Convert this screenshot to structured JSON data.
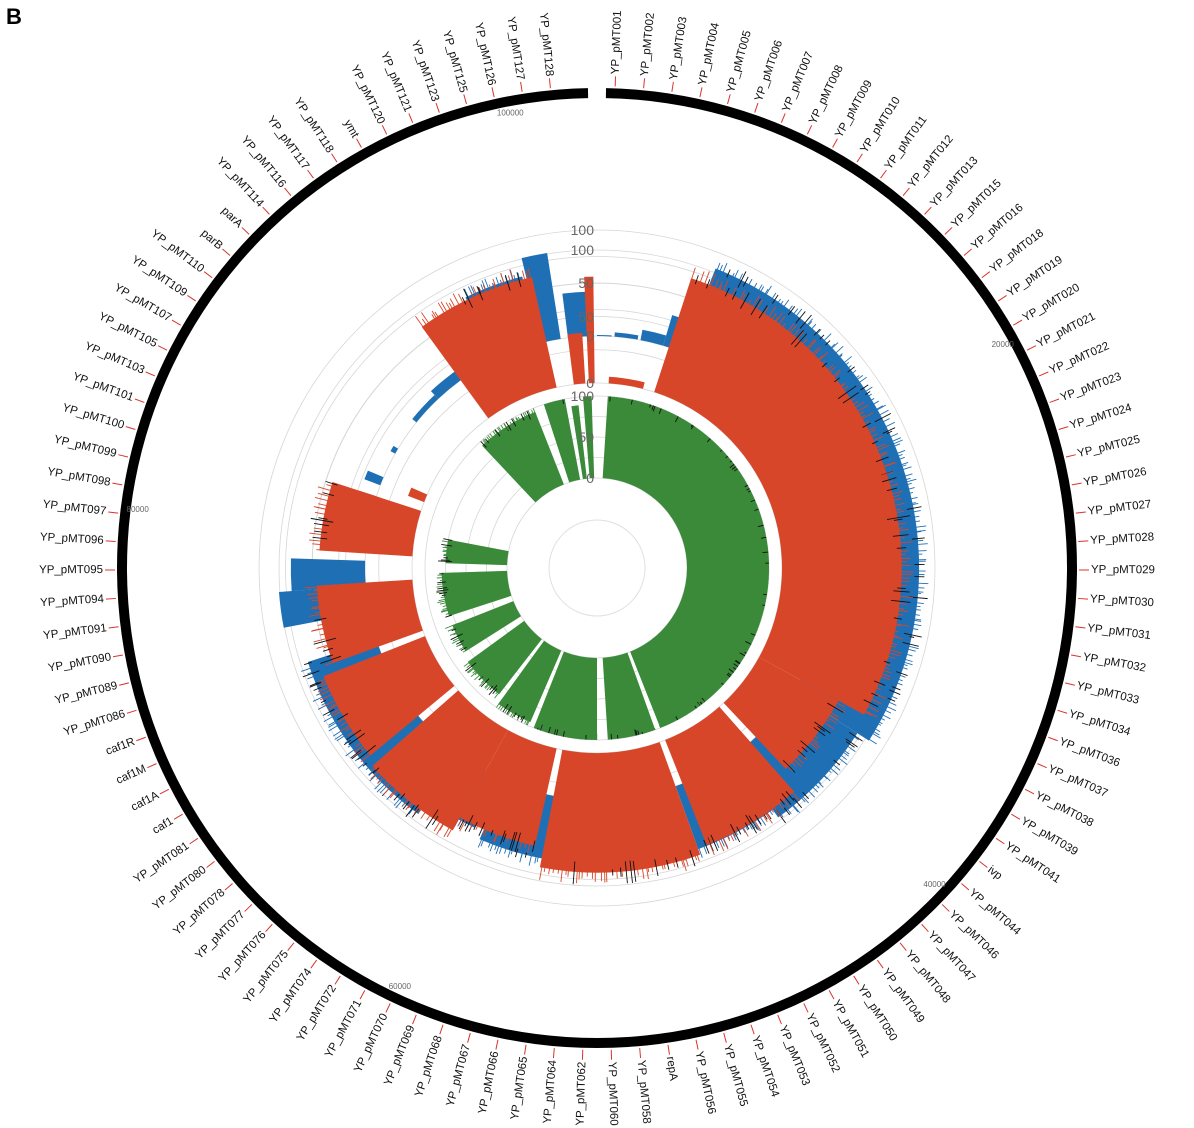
{
  "panel_letter": "B",
  "chart_data": {
    "type": "area",
    "layout": "circular",
    "colors": {
      "track_outer": "#1f6fb5",
      "track_middle": "#d8462a",
      "track_inner": "#3a8a3a",
      "backbone": "#000000",
      "gene_tick": "#d9342b",
      "grid": "#d6d6d6"
    },
    "radial_ticks": [
      "0",
      "50",
      "100"
    ],
    "ylim": [
      0,
      100
    ],
    "coordinate_labels": [
      "100000",
      "80000",
      "60000",
      "40000",
      "20000"
    ],
    "gene_labels": [
      "YP_pMT001",
      "YP_pMT002",
      "YP_pMT003",
      "YP_pMT004",
      "YP_pMT005",
      "YP_pMT006",
      "YP_pMT007",
      "YP_pMT008",
      "YP_pMT009",
      "YP_pMT010",
      "YP_pMT011",
      "YP_pMT012",
      "YP_pMT013",
      "YP_pMT015",
      "YP_pMT016",
      "YP_pMT018",
      "YP_pMT019",
      "YP_pMT020",
      "YP_pMT021",
      "YP_pMT022",
      "YP_pMT023",
      "YP_pMT024",
      "YP_pMT025",
      "YP_pMT026",
      "YP_pMT027",
      "YP_pMT028",
      "YP_pMT029",
      "YP_pMT030",
      "YP_pMT031",
      "YP_pMT032",
      "YP_pMT033",
      "YP_pMT034",
      "YP_pMT036",
      "YP_pMT037",
      "YP_pMT038",
      "YP_pMT039",
      "YP_pMT041",
      "ivp",
      "YP_pMT044",
      "YP_pMT046",
      "YP_pMT047",
      "YP_pMT048",
      "YP_pMT049",
      "YP_pMT050",
      "YP_pMT051",
      "YP_pMT052",
      "YP_pMT053",
      "YP_pMT054",
      "YP_pMT055",
      "YP_pMT056",
      "repA",
      "YP_pMT058",
      "YP_pMT060",
      "YP_pMT062",
      "YP_pMT064",
      "YP_pMT065",
      "YP_pMT066",
      "YP_pMT067",
      "YP_pMT068",
      "YP_pMT069",
      "YP_pMT070",
      "YP_pMT071",
      "YP_pMT072",
      "YP_pMT074",
      "YP_pMT075",
      "YP_pMT076",
      "YP_pMT077",
      "YP_pMT078",
      "YP_pMT080",
      "YP_pMT081",
      "caf1",
      "caf1A",
      "caf1M",
      "caf1R",
      "YP_pMT086",
      "YP_pMT089",
      "YP_pMT090",
      "YP_pMT091",
      "YP_pMT094",
      "YP_pMT095",
      "YP_pMT096",
      "YP_pMT097",
      "YP_pMT098",
      "YP_pMT099",
      "YP_pMT100",
      "YP_pMT101",
      "YP_pMT103",
      "YP_pMT105",
      "YP_pMT107",
      "YP_pMT109",
      "YP_pMT110",
      "parB",
      "parA",
      "YP_pMT114",
      "YP_pMT116",
      "YP_pMT117",
      "YP_pMT118",
      "ymt",
      "YP_pMT120",
      "YP_pMT121",
      "YP_pMT123",
      "YP_pMT125",
      "YP_pMT126",
      "YP_pMT127",
      "YP_pMT128"
    ],
    "series": [
      {
        "track": "outer",
        "color": "#1f6fb5",
        "segments": [
          {
            "start": 0.0,
            "end": 0.01,
            "value": 1
          },
          {
            "start": 0.012,
            "end": 0.028,
            "value": 4
          },
          {
            "start": 0.03,
            "end": 0.046,
            "value": 10
          },
          {
            "start": 0.046,
            "end": 0.06,
            "value": 30
          },
          {
            "start": 0.06,
            "end": 0.34,
            "value": 85
          },
          {
            "start": 0.34,
            "end": 0.4,
            "value": 72
          },
          {
            "start": 0.4,
            "end": 0.445,
            "value": 63
          },
          {
            "start": 0.45,
            "end": 0.565,
            "value": 60
          },
          {
            "start": 0.57,
            "end": 0.6,
            "value": 52
          },
          {
            "start": 0.6,
            "end": 0.7,
            "value": 68
          },
          {
            "start": 0.72,
            "end": 0.738,
            "value": 82
          },
          {
            "start": 0.738,
            "end": 0.755,
            "value": 70
          },
          {
            "start": 0.79,
            "end": 0.8,
            "value": 17
          },
          {
            "start": 0.808,
            "end": 0.814,
            "value": 16
          },
          {
            "start": 0.832,
            "end": 0.836,
            "value": 5
          },
          {
            "start": 0.858,
            "end": 0.88,
            "value": 5
          },
          {
            "start": 0.88,
            "end": 0.925,
            "value": 10
          },
          {
            "start": 0.928,
            "end": 0.96,
            "value": 65
          },
          {
            "start": 0.962,
            "end": 0.975,
            "value": 82
          },
          {
            "start": 0.98,
            "end": 0.995,
            "value": 42
          }
        ]
      },
      {
        "track": "middle",
        "color": "#d8462a",
        "segments": [
          {
            "start": 0.01,
            "end": 0.04,
            "value": 5
          },
          {
            "start": 0.05,
            "end": 0.33,
            "value": 90
          },
          {
            "start": 0.33,
            "end": 0.38,
            "value": 68
          },
          {
            "start": 0.385,
            "end": 0.44,
            "value": 85
          },
          {
            "start": 0.445,
            "end": 0.53,
            "value": 90
          },
          {
            "start": 0.535,
            "end": 0.58,
            "value": 75
          },
          {
            "start": 0.58,
            "end": 0.635,
            "value": 86
          },
          {
            "start": 0.64,
            "end": 0.69,
            "value": 82
          },
          {
            "start": 0.695,
            "end": 0.74,
            "value": 72
          },
          {
            "start": 0.76,
            "end": 0.8,
            "value": 70
          },
          {
            "start": 0.808,
            "end": 0.815,
            "value": 13
          },
          {
            "start": 0.9,
            "end": 0.965,
            "value": 85
          },
          {
            "start": 0.98,
            "end": 0.99,
            "value": 38
          },
          {
            "start": 0.993,
            "end": 0.998,
            "value": 80
          }
        ]
      },
      {
        "track": "inner",
        "color": "#3a8a3a",
        "segments": [
          {
            "start": 0.01,
            "end": 0.44,
            "value": 100
          },
          {
            "start": 0.445,
            "end": 0.49,
            "value": 100
          },
          {
            "start": 0.5,
            "end": 0.56,
            "value": 100
          },
          {
            "start": 0.565,
            "end": 0.6,
            "value": 95
          },
          {
            "start": 0.605,
            "end": 0.65,
            "value": 85
          },
          {
            "start": 0.66,
            "end": 0.69,
            "value": 80
          },
          {
            "start": 0.7,
            "end": 0.745,
            "value": 80
          },
          {
            "start": 0.755,
            "end": 0.78,
            "value": 75
          },
          {
            "start": 0.88,
            "end": 0.94,
            "value": 95
          },
          {
            "start": 0.95,
            "end": 0.97,
            "value": 100
          },
          {
            "start": 0.975,
            "end": 0.982,
            "value": 90
          },
          {
            "start": 0.987,
            "end": 0.995,
            "value": 100
          }
        ]
      }
    ]
  }
}
